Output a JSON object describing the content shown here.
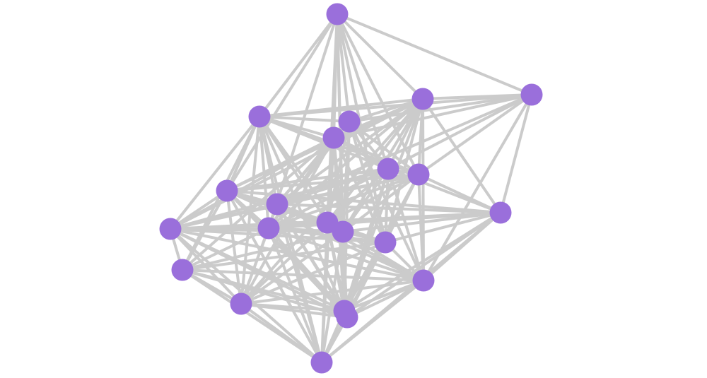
{
  "graph": {
    "node_color": "#9a6fdb",
    "edge_color": "#cbcbcb",
    "nodes": [
      "n0",
      "n1",
      "n2",
      "n3",
      "n4",
      "n5",
      "n6",
      "n7",
      "n8",
      "n9",
      "n10",
      "n11",
      "n12",
      "n13",
      "n14",
      "n15",
      "n16",
      "n17",
      "n18",
      "n19",
      "n20",
      "n21"
    ],
    "adjacency": {
      "n0": [
        "n1",
        "n2",
        "n3",
        "n4",
        "n5",
        "n6",
        "n7",
        "n8",
        "n12",
        "n13",
        "n14",
        "n15",
        "n19"
      ],
      "n1": [
        "n2",
        "n3",
        "n4",
        "n5",
        "n6",
        "n7",
        "n9",
        "n10",
        "n17"
      ],
      "n2": [
        "n3",
        "n4",
        "n5",
        "n6",
        "n7",
        "n8",
        "n9",
        "n10",
        "n11",
        "n12",
        "n13",
        "n14",
        "n15",
        "n17",
        "n18",
        "n19"
      ],
      "n3": [
        "n4",
        "n5",
        "n6",
        "n7",
        "n8",
        "n9",
        "n11",
        "n12",
        "n13",
        "n14",
        "n16",
        "n18",
        "n19",
        "n21"
      ],
      "n4": [
        "n5",
        "n6",
        "n7",
        "n9",
        "n12",
        "n13",
        "n14",
        "n15",
        "n17",
        "n19"
      ],
      "n5": [
        "n6",
        "n7",
        "n8",
        "n9",
        "n11",
        "n12",
        "n13",
        "n14",
        "n15",
        "n16",
        "n18",
        "n19",
        "n20",
        "n21"
      ],
      "n6": [
        "n7",
        "n8",
        "n9",
        "n10",
        "n11",
        "n12",
        "n13",
        "n14",
        "n15",
        "n17",
        "n19",
        "n20"
      ],
      "n7": [
        "n8",
        "n9",
        "n10",
        "n11",
        "n12",
        "n13",
        "n14",
        "n15",
        "n17",
        "n19",
        "n20"
      ],
      "n8": [
        "n9",
        "n10",
        "n11",
        "n12",
        "n13",
        "n14",
        "n15",
        "n16",
        "n17",
        "n18",
        "n19",
        "n20",
        "n21"
      ],
      "n9": [
        "n10",
        "n11",
        "n12",
        "n13",
        "n14",
        "n15",
        "n17",
        "n18",
        "n19",
        "n20",
        "n21"
      ],
      "n10": [
        "n11",
        "n12",
        "n13",
        "n14",
        "n15",
        "n17",
        "n19",
        "n20",
        "n21"
      ],
      "n11": [
        "n12",
        "n13",
        "n14",
        "n15",
        "n16",
        "n17",
        "n18",
        "n19",
        "n20",
        "n21"
      ],
      "n12": [
        "n13",
        "n14",
        "n15",
        "n16",
        "n17",
        "n18",
        "n19",
        "n20",
        "n21"
      ],
      "n13": [
        "n14",
        "n15",
        "n17",
        "n18",
        "n19",
        "n20",
        "n21"
      ],
      "n14": [
        "n15",
        "n16",
        "n17",
        "n18",
        "n19",
        "n20",
        "n21"
      ],
      "n15": [
        "n16",
        "n17",
        "n18",
        "n19",
        "n20",
        "n21"
      ],
      "n16": [
        "n17",
        "n18",
        "n19",
        "n20",
        "n21"
      ],
      "n17": [
        "n18",
        "n19",
        "n20",
        "n21"
      ],
      "n18": [
        "n19",
        "n20",
        "n21"
      ],
      "n19": [
        "n20",
        "n21"
      ],
      "n20": [
        "n21"
      ]
    }
  }
}
